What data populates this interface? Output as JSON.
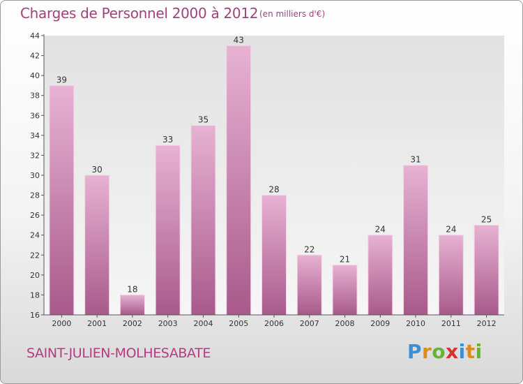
{
  "title": "Charges de Personnel 2000 à 2012",
  "subtitle": "(en milliers d'€)",
  "commune": "SAINT-JULIEN-MOLHESABATE",
  "logo": "Proxiti",
  "colors": {
    "bar_top": "#e7b2d3",
    "bar_bottom": "#a85a8a",
    "title": "#a0427a",
    "commune": "#b83a82"
  },
  "chart_data": {
    "type": "bar",
    "categories": [
      "2000",
      "2001",
      "2002",
      "2003",
      "2004",
      "2005",
      "2006",
      "2007",
      "2008",
      "2009",
      "2010",
      "2011",
      "2012"
    ],
    "values": [
      39,
      30,
      18,
      33,
      35,
      43,
      28,
      22,
      21,
      24,
      31,
      24,
      25
    ],
    "ylim": [
      16,
      44
    ],
    "yticks": [
      16,
      18,
      20,
      22,
      24,
      26,
      28,
      30,
      32,
      34,
      36,
      38,
      40,
      42,
      44
    ],
    "grid": false,
    "legend": "none"
  }
}
